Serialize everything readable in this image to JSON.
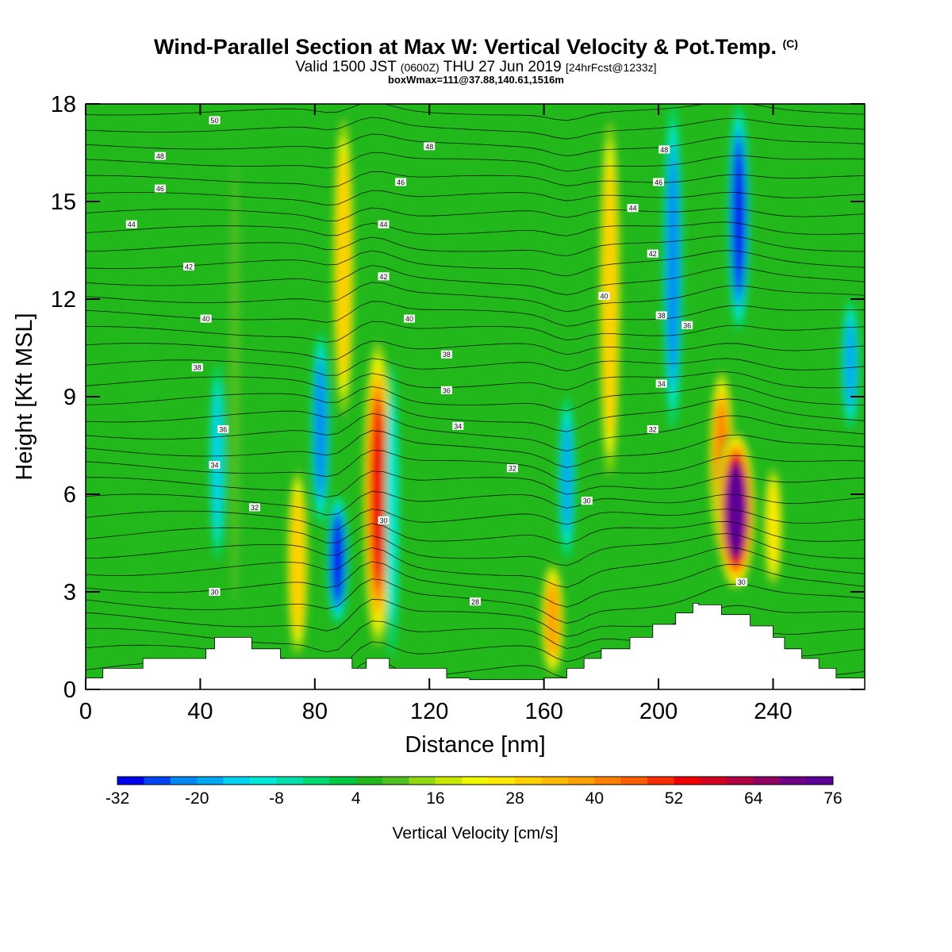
{
  "header": {
    "title_main": "Wind-Parallel Section at Max W: Vertical Velocity & Pot.Temp.",
    "title_mark": "(C)",
    "valid_a": "Valid 1500 JST",
    "valid_b": "(0600Z)",
    "valid_c": "THU 27 Jun 2019",
    "valid_d": "[24hrFcst@1233z]",
    "box_info": "boxWmax=111@37.88,140.61,1516m"
  },
  "chart_data": {
    "type": "heatmap",
    "xlabel": "Distance [nm]",
    "ylabel": "Height [Kft MSL]",
    "xlim": [
      0,
      272
    ],
    "ylim": [
      0,
      18
    ],
    "x_ticks": [
      0,
      40,
      80,
      120,
      160,
      200,
      240
    ],
    "y_ticks": [
      0,
      3,
      6,
      9,
      12,
      15,
      18
    ],
    "colorbar": {
      "label": "Vertical Velocity [cm/s]",
      "min": -32,
      "max": 76,
      "step": 4,
      "tick_labels": [
        -32,
        -20,
        -8,
        4,
        16,
        28,
        40,
        52,
        64,
        76
      ],
      "colors": [
        "#0000f0",
        "#0044f5",
        "#0088f5",
        "#00a8f5",
        "#00d2f0",
        "#00e8d8",
        "#00e0a8",
        "#00d870",
        "#00c840",
        "#22b81c",
        "#50c020",
        "#90d810",
        "#c8e800",
        "#f0f800",
        "#ffe800",
        "#ffd000",
        "#ffb800",
        "#ffa000",
        "#ff8000",
        "#ff5c00",
        "#ff2c00",
        "#f00000",
        "#d40020",
        "#b00040",
        "#900060",
        "#6c0088",
        "#5a0098"
      ]
    },
    "vertical_velocity_features": [
      {
        "x": 20,
        "y_range": [
          0.5,
          18
        ],
        "w": 4,
        "kind": "weak updraft"
      },
      {
        "x": 52,
        "y_range": [
          0.8,
          18
        ],
        "w": 10,
        "kind": "weak updraft"
      },
      {
        "x": 46,
        "y_range": [
          4,
          10
        ],
        "w": -14,
        "kind": "downdraft"
      },
      {
        "x": 74,
        "y_range": [
          0.8,
          7
        ],
        "w": 30,
        "kind": "updraft"
      },
      {
        "x": 82,
        "y_range": [
          5,
          11
        ],
        "w": -22,
        "kind": "downdraft"
      },
      {
        "x": 88,
        "y_range": [
          2,
          6
        ],
        "w": -30,
        "kind": "downdraft"
      },
      {
        "x": 90,
        "y_range": [
          8,
          18
        ],
        "w": 30,
        "kind": "updraft"
      },
      {
        "x": 102,
        "y_range": [
          1,
          11
        ],
        "w": 52,
        "kind": "updraft"
      },
      {
        "x": 107,
        "y_range": [
          1,
          10
        ],
        "w": -12,
        "kind": "downdraft"
      },
      {
        "x": 163,
        "y_range": [
          0.3,
          4
        ],
        "w": 36,
        "kind": "updraft"
      },
      {
        "x": 168,
        "y_range": [
          4,
          9
        ],
        "w": -18,
        "kind": "downdraft"
      },
      {
        "x": 183,
        "y_range": [
          6,
          18
        ],
        "w": 30,
        "kind": "updraft"
      },
      {
        "x": 205,
        "y_range": [
          8,
          18
        ],
        "w": -24,
        "kind": "downdraft"
      },
      {
        "x": 222,
        "y_range": [
          4,
          10
        ],
        "w": 40,
        "kind": "updraft"
      },
      {
        "x": 227,
        "y_range": [
          3,
          8
        ],
        "w": 76,
        "kind": "updraft core"
      },
      {
        "x": 228,
        "y_range": [
          11,
          18
        ],
        "w": -30,
        "kind": "downdraft"
      },
      {
        "x": 240,
        "y_range": [
          3,
          7
        ],
        "w": 24,
        "kind": "updraft"
      },
      {
        "x": 267,
        "y_range": [
          8,
          12
        ],
        "w": -20,
        "kind": "downdraft"
      }
    ],
    "potential_temperature_labels": [
      {
        "x": 45,
        "y": 17.5,
        "text": "50"
      },
      {
        "x": 26,
        "y": 16.4,
        "text": "48"
      },
      {
        "x": 26,
        "y": 15.4,
        "text": "46"
      },
      {
        "x": 16,
        "y": 14.3,
        "text": "44"
      },
      {
        "x": 36,
        "y": 13.0,
        "text": "42"
      },
      {
        "x": 42,
        "y": 11.4,
        "text": "40"
      },
      {
        "x": 39,
        "y": 9.9,
        "text": "38"
      },
      {
        "x": 48,
        "y": 8.0,
        "text": "36"
      },
      {
        "x": 45,
        "y": 6.9,
        "text": "34"
      },
      {
        "x": 59,
        "y": 5.6,
        "text": "32"
      },
      {
        "x": 45,
        "y": 3.0,
        "text": "30"
      },
      {
        "x": 120,
        "y": 16.7,
        "text": "48"
      },
      {
        "x": 110,
        "y": 15.6,
        "text": "46"
      },
      {
        "x": 104,
        "y": 14.3,
        "text": "44"
      },
      {
        "x": 104,
        "y": 12.7,
        "text": "42"
      },
      {
        "x": 113,
        "y": 11.4,
        "text": "40"
      },
      {
        "x": 126,
        "y": 10.3,
        "text": "38"
      },
      {
        "x": 126,
        "y": 9.2,
        "text": "36"
      },
      {
        "x": 130,
        "y": 8.1,
        "text": "34"
      },
      {
        "x": 149,
        "y": 6.8,
        "text": "32"
      },
      {
        "x": 104,
        "y": 5.2,
        "text": "30"
      },
      {
        "x": 136,
        "y": 2.7,
        "text": "28"
      },
      {
        "x": 202,
        "y": 16.6,
        "text": "48"
      },
      {
        "x": 200,
        "y": 15.6,
        "text": "46"
      },
      {
        "x": 191,
        "y": 14.8,
        "text": "44"
      },
      {
        "x": 198,
        "y": 13.4,
        "text": "42"
      },
      {
        "x": 181,
        "y": 12.1,
        "text": "40"
      },
      {
        "x": 201,
        "y": 11.5,
        "text": "38"
      },
      {
        "x": 210,
        "y": 11.2,
        "text": "36"
      },
      {
        "x": 201,
        "y": 9.4,
        "text": "34"
      },
      {
        "x": 198,
        "y": 8.0,
        "text": "32"
      },
      {
        "x": 175,
        "y": 5.8,
        "text": "30"
      },
      {
        "x": 229,
        "y": 3.3,
        "text": "30"
      }
    ]
  }
}
